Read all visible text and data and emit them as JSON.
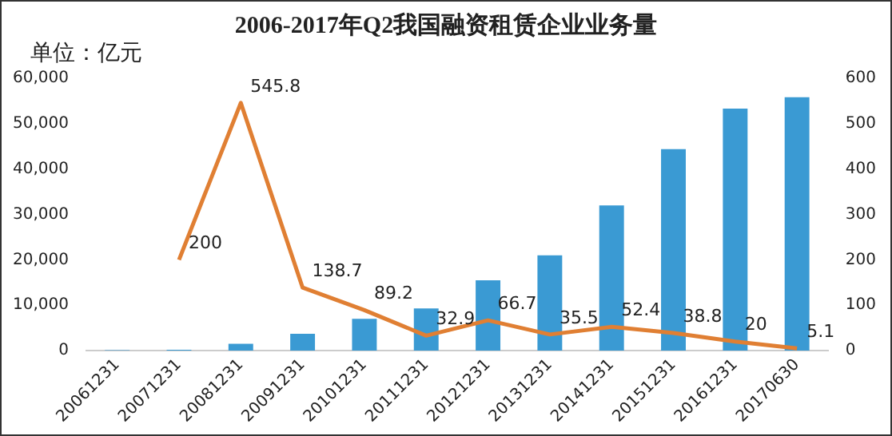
{
  "chart_data": {
    "type": "bar",
    "title": "2006-2017年Q2我国融资租赁企业业务量",
    "ylabel": "单位：亿元",
    "categories": [
      "20061231",
      "20071231",
      "20081231",
      "20091231",
      "20101231",
      "20111231",
      "20121231",
      "20131231",
      "20141231",
      "20151231",
      "20161231",
      "20170630"
    ],
    "series": [
      {
        "color": "#3a9ad3",
        "values": [
          100,
          200,
          1500,
          3700,
          7000,
          9300,
          15500,
          21000,
          32000,
          44400,
          53300,
          55800
        ]
      },
      {
        "type": "line",
        "axis": "y2",
        "color": "#e07f33",
        "values": [
          null,
          200,
          545.8,
          138.7,
          89.2,
          32.9,
          66.7,
          35.5,
          52.4,
          38.8,
          20,
          5.1
        ],
        "value_labels": [
          null,
          "200",
          "545.8",
          "138.7",
          "89.2",
          "32.9",
          "66.7",
          "35.5",
          "52.4",
          "38.8",
          "20",
          "5.1"
        ]
      }
    ],
    "ylim": [
      0,
      60000
    ],
    "yticks": [
      {
        "value": 0,
        "label": "0"
      },
      {
        "value": 10000,
        "label": "10,000"
      },
      {
        "value": 20000,
        "label": "20,000"
      },
      {
        "value": 30000,
        "label": "30,000"
      },
      {
        "value": 40000,
        "label": "40,000"
      },
      {
        "value": 50000,
        "label": "50,000"
      },
      {
        "value": 60000,
        "label": "60,000"
      }
    ],
    "y2lim": [
      0,
      600
    ],
    "y2ticks": [
      0,
      100,
      200,
      300,
      400,
      500,
      600
    ],
    "grid": false,
    "legend": false,
    "marker": "none"
  }
}
